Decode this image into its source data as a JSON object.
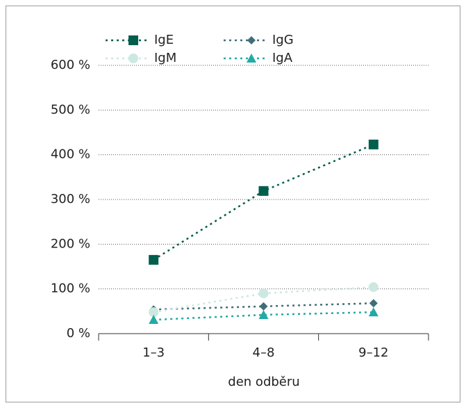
{
  "chart_data": {
    "type": "line",
    "x_label": "den odběru",
    "categories": [
      "1–3",
      "4–8",
      "9–12"
    ],
    "series": [
      {
        "name": "IgE",
        "color": "#005e4c",
        "marker": "square",
        "values": [
          165,
          319,
          423
        ]
      },
      {
        "name": "IgG",
        "color": "#3f6e7a",
        "marker": "diamond",
        "values": [
          54,
          61,
          68
        ]
      },
      {
        "name": "IgM",
        "color": "#cce8e1",
        "marker": "circle",
        "values": [
          48,
          90,
          104
        ]
      },
      {
        "name": "IgA",
        "color": "#22aaa5",
        "marker": "triangle",
        "values": [
          31,
          42,
          48
        ]
      }
    ],
    "ylim": [
      0,
      600
    ],
    "yticks": [
      {
        "value": 0,
        "label": "0 %"
      },
      {
        "value": 100,
        "label": "100 %"
      },
      {
        "value": 200,
        "label": "200 %"
      },
      {
        "value": 300,
        "label": "300 %"
      },
      {
        "value": 400,
        "label": "400 %"
      },
      {
        "value": 500,
        "label": "500 %"
      },
      {
        "value": 600,
        "label": "600 %"
      }
    ],
    "grid": true,
    "legend": "top-left"
  }
}
